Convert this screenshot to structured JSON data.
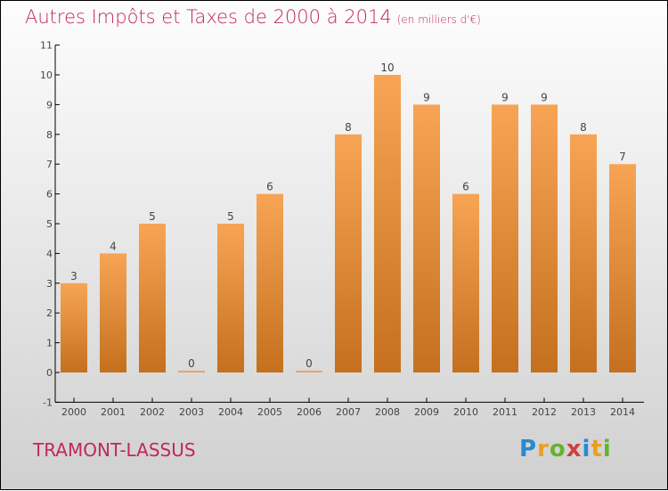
{
  "title": "Autres Impôts et Taxes de 2000 à 2014",
  "unit": "(en milliers d'€)",
  "commune": "TRAMONT-LASSUS",
  "logo": "Proxiti",
  "chart_data": {
    "type": "bar",
    "title": "Autres Impôts et Taxes de 2000 à 2014",
    "subtitle": "(en milliers d'€)",
    "categories": [
      "2000",
      "2001",
      "2002",
      "2003",
      "2004",
      "2005",
      "2006",
      "2007",
      "2008",
      "2009",
      "2010",
      "2011",
      "2012",
      "2013",
      "2014"
    ],
    "values": [
      3,
      4,
      5,
      0,
      5,
      6,
      0,
      8,
      10,
      9,
      6,
      9,
      9,
      8,
      7
    ],
    "ylim": [
      -1,
      11
    ],
    "yticks": [
      -1,
      0,
      1,
      2,
      3,
      4,
      5,
      6,
      7,
      8,
      9,
      10,
      11
    ],
    "xlabel": "",
    "ylabel": "",
    "bar_color": "#f0a050"
  }
}
